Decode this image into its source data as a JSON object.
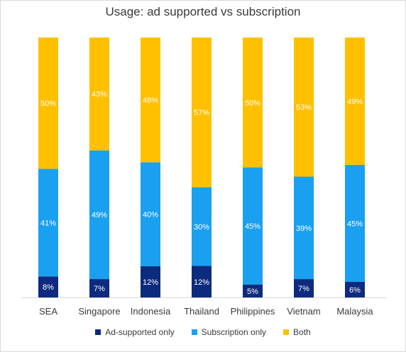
{
  "chart_data": {
    "type": "bar",
    "stacked": true,
    "title": "Usage: ad supported vs subscription",
    "xlabel": "",
    "ylabel": "",
    "ylim": [
      0,
      100
    ],
    "grid": false,
    "legend_position": "bottom",
    "categories": [
      "SEA",
      "Singapore",
      "Indonesia",
      "Thailand",
      "Philippines",
      "Vietnam",
      "Malaysia"
    ],
    "series": [
      {
        "name": "Ad-supported only",
        "color": "#0d2b7e",
        "values": [
          8,
          7,
          12,
          12,
          5,
          7,
          6
        ],
        "labels": [
          "8%",
          "7%",
          "12%",
          "12%",
          "5%",
          "7%",
          "6%"
        ]
      },
      {
        "name": "Subscription only",
        "color": "#1aa0f0",
        "values": [
          41,
          49,
          40,
          30,
          45,
          39,
          45
        ],
        "labels": [
          "41%",
          "49%",
          "40%",
          "30%",
          "45%",
          "39%",
          "45%"
        ]
      },
      {
        "name": "Both",
        "color": "#ffc000",
        "values": [
          50,
          43,
          48,
          57,
          50,
          53,
          49
        ],
        "labels": [
          "50%",
          "43%",
          "48%",
          "57%",
          "50%",
          "53%",
          "49%"
        ]
      }
    ]
  }
}
